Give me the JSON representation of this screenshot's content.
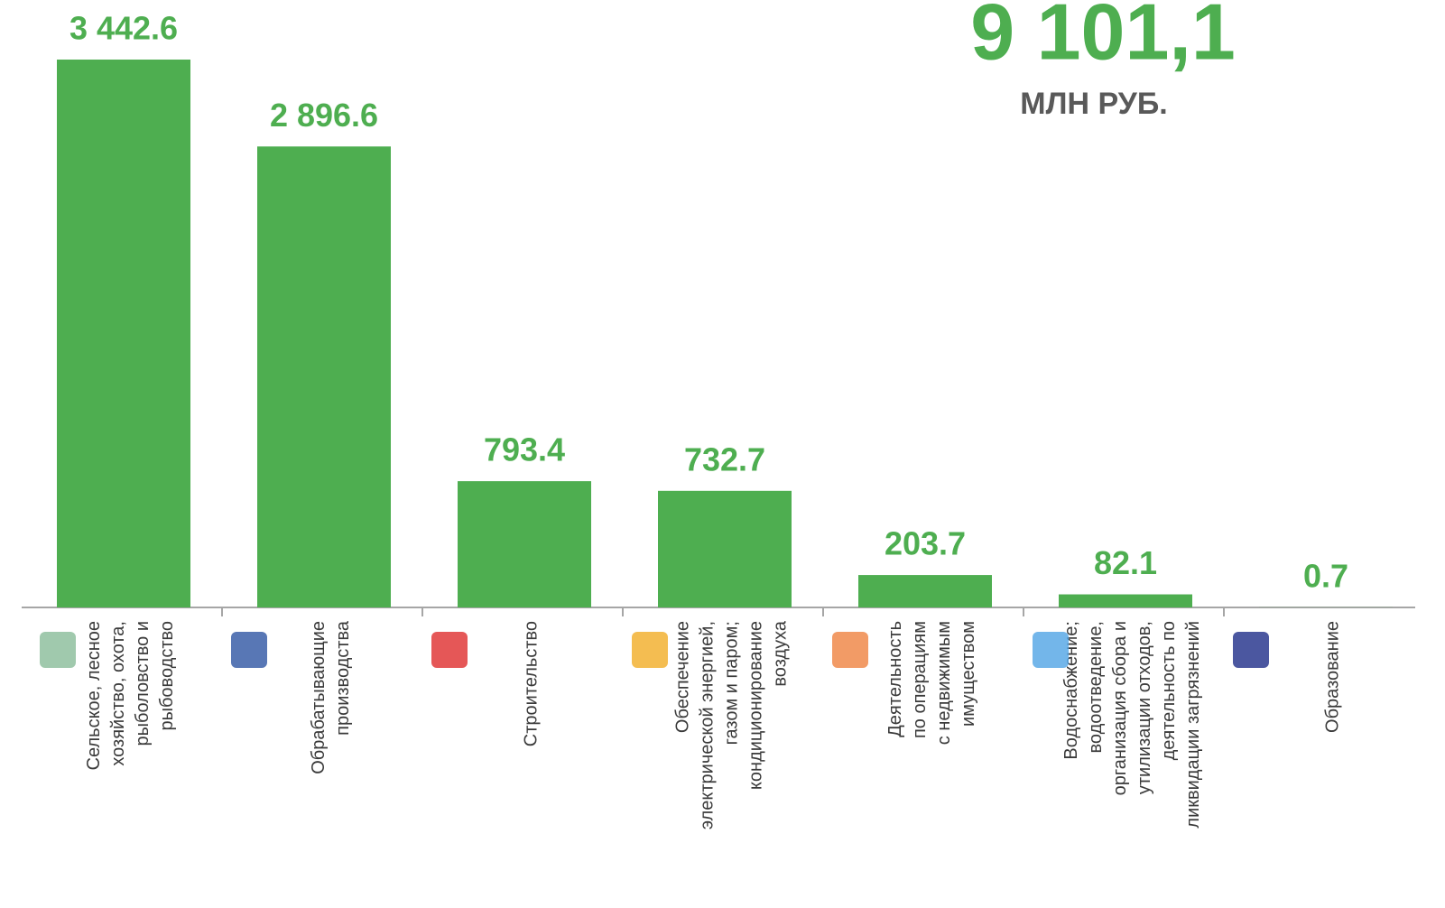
{
  "chart_data": {
    "type": "bar",
    "total": "9 101,1",
    "unit": "МЛН РУБ.",
    "categories": [
      [
        "Сельское, лесное",
        "хозяйство, охота,",
        "рыболовство и",
        "рыбоводство"
      ],
      [
        "Обрабатывающие",
        "производства"
      ],
      [
        "Строительство"
      ],
      [
        "Обеспечение",
        "электрической энергией,",
        "газом и паром;",
        "кондиционирование",
        "воздуха"
      ],
      [
        "Деятельность",
        "по операциям",
        "с недвижимым",
        "имуществом"
      ],
      [
        "Водоснабжение;",
        "водоотведение,",
        "организация сбора и",
        "утилизации отходов,",
        "деятельность по",
        "ликвидации  загрязнений"
      ],
      [
        "Образование"
      ]
    ],
    "values": [
      3442.6,
      2896.6,
      793.4,
      732.7,
      203.7,
      82.1,
      0.7
    ],
    "value_labels": [
      "3 442.6",
      "2 896.6",
      "793.4",
      "732.7",
      "203.7",
      "82.1",
      "0.7"
    ],
    "color": "#4eae50",
    "ylim": [
      0,
      3800
    ]
  }
}
